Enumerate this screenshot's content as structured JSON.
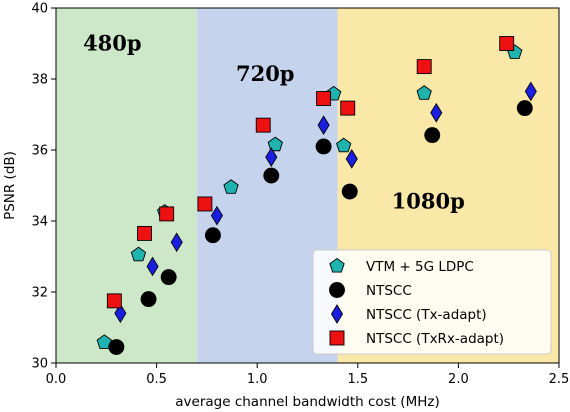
{
  "chart_data": {
    "type": "scatter",
    "xlabel": "average channel bandwidth cost (MHz)",
    "ylabel": "PSNR (dB)",
    "xlim": [
      0.0,
      2.5
    ],
    "ylim": [
      30,
      40
    ],
    "xticks": [
      0.0,
      0.5,
      1.0,
      1.5,
      2.0,
      2.5
    ],
    "xtick_labels": [
      "0.0",
      "0.5",
      "1.0",
      "1.5",
      "2.0",
      "2.5"
    ],
    "yticks": [
      30,
      32,
      34,
      36,
      38,
      40
    ],
    "ytick_labels": [
      "30",
      "32",
      "34",
      "36",
      "38",
      "40"
    ],
    "grid": false,
    "legend_position": "bottom-right",
    "regions": [
      {
        "label": "480p",
        "x_range": [
          0.0,
          0.7
        ],
        "color": "#cde8c8"
      },
      {
        "label": "720p",
        "x_range": [
          0.7,
          1.4
        ],
        "color": "#c6d3ec"
      },
      {
        "label": "1080p",
        "x_range": [
          1.4,
          2.5
        ],
        "color": "#fae8a8"
      }
    ],
    "series": [
      {
        "name": "VTM + 5G LDPC",
        "marker": "pentagon",
        "color": "#1fb3b0",
        "points": [
          [
            0.24,
            30.58
          ],
          [
            0.41,
            33.05
          ],
          [
            0.54,
            34.25
          ],
          [
            0.87,
            34.95
          ],
          [
            1.09,
            36.15
          ],
          [
            1.38,
            37.58
          ],
          [
            1.43,
            36.12
          ],
          [
            1.83,
            37.6
          ],
          [
            2.28,
            38.75
          ]
        ]
      },
      {
        "name": "NTSCC",
        "marker": "circle",
        "color": "#000000",
        "points": [
          [
            0.3,
            30.45
          ],
          [
            0.46,
            31.8
          ],
          [
            0.56,
            32.42
          ],
          [
            0.78,
            33.6
          ],
          [
            1.07,
            35.28
          ],
          [
            1.33,
            36.1
          ],
          [
            1.46,
            34.83
          ],
          [
            1.87,
            36.42
          ],
          [
            2.33,
            37.18
          ]
        ]
      },
      {
        "name": "NTSCC (Tx-adapt)",
        "marker": "diamond",
        "color": "#1a1ee0",
        "points": [
          [
            0.32,
            31.4
          ],
          [
            0.48,
            32.72
          ],
          [
            0.6,
            33.4
          ],
          [
            0.8,
            34.15
          ],
          [
            1.07,
            35.8
          ],
          [
            1.33,
            36.7
          ],
          [
            1.47,
            35.75
          ],
          [
            1.89,
            37.05
          ],
          [
            2.36,
            37.65
          ]
        ]
      },
      {
        "name": "NTSCC (TxRx-adapt)",
        "marker": "square",
        "color": "#ee1111",
        "points": [
          [
            0.29,
            31.75
          ],
          [
            0.44,
            33.65
          ],
          [
            0.55,
            34.2
          ],
          [
            0.74,
            34.48
          ],
          [
            1.03,
            36.7
          ],
          [
            1.33,
            37.45
          ],
          [
            1.45,
            37.18
          ],
          [
            1.83,
            38.35
          ],
          [
            2.24,
            39.0
          ]
        ]
      }
    ]
  }
}
